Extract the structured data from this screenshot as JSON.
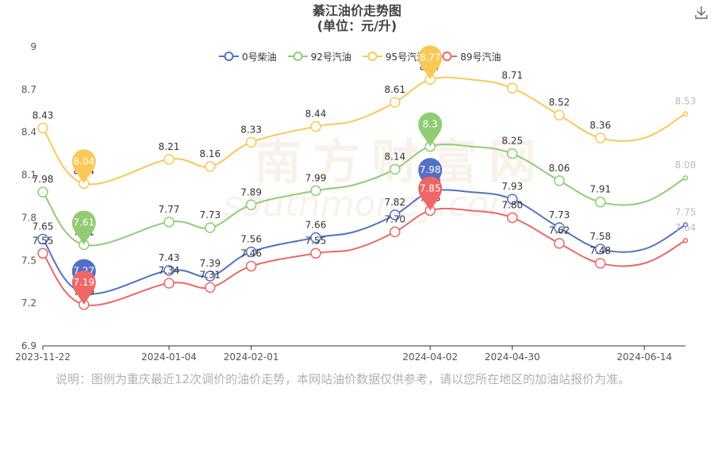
{
  "title": "綦江油价走势图",
  "subtitle": "(单位：元/升)",
  "footnote": "说明：图例为重庆最近12次调价的油价走势，本网站油价数据仅供参考，请以您所在地区的加油站报价为准。",
  "watermark": {
    "cn": "南方财富网",
    "en": "southmoney.com"
  },
  "icons": {
    "download": "download-icon"
  },
  "chart_data": {
    "type": "line",
    "title": "綦江油价走势图",
    "subtitle": "(单位：元/升)",
    "x": [
      "2023-11-22",
      "2023-12-06",
      "2024-01-04",
      "2024-01-18",
      "2024-02-01",
      "2024-02-23",
      "2024-03-07",
      "2024-03-21",
      "2024-04-02",
      "2024-04-16",
      "2024-04-30",
      "2024-05-16",
      "2024-05-30",
      "2024-06-14",
      "2024-06-28"
    ],
    "xticks": [
      "2023-11-22",
      "2024-01-04",
      "2024-02-01",
      "2024-04-02",
      "2024-04-30",
      "2024-06-14"
    ],
    "ylim": [
      6.9,
      9
    ],
    "yticks": [
      "6.9",
      "7.2",
      "7.5",
      "7.8",
      "8.1",
      "8.4",
      "8.7",
      "9"
    ],
    "grid": false,
    "legend_position": "top",
    "series": [
      {
        "name": "0号柴油",
        "color": "#5470c6",
        "values": [
          7.65,
          7.27,
          7.43,
          7.39,
          7.56,
          7.66,
          7.7,
          7.82,
          7.98,
          7.98,
          7.93,
          7.73,
          7.58,
          7.58,
          7.75
        ],
        "labels": [
          "7.65",
          "7.27",
          "7.43",
          "7.39",
          "7.56",
          "7.66",
          "",
          "7.82",
          "7.98",
          "",
          "7.93",
          "7.73",
          "7.58",
          "",
          "7.75"
        ],
        "marker": {
          "index": 8,
          "label": "7.98"
        }
      },
      {
        "name": "92号汽油",
        "color": "#91cc75",
        "values": [
          7.98,
          7.61,
          7.77,
          7.73,
          7.89,
          7.99,
          8.03,
          8.14,
          8.3,
          8.3,
          8.25,
          8.06,
          7.91,
          7.91,
          8.08
        ],
        "labels": [
          "7.98",
          "7.61",
          "7.77",
          "7.73",
          "7.89",
          "7.99",
          "",
          "8.14",
          "8.3",
          "",
          "8.25",
          "8.06",
          "7.91",
          "",
          "8.08"
        ],
        "marker": {
          "index": 1,
          "label": "7.61"
        }
      },
      {
        "name": "95号汽油",
        "color": "#fac858",
        "values": [
          8.43,
          8.04,
          8.21,
          8.16,
          8.33,
          8.44,
          8.48,
          8.61,
          8.77,
          8.77,
          8.71,
          8.52,
          8.36,
          8.36,
          8.53
        ],
        "labels": [
          "8.43",
          "8.04",
          "8.21",
          "8.16",
          "8.33",
          "8.44",
          "",
          "8.61",
          "8.77",
          "",
          "8.71",
          "8.52",
          "8.36",
          "",
          "8.53"
        ],
        "marker": {
          "index": 8,
          "label": "8.77"
        }
      },
      {
        "name": "89号汽油",
        "color": "#ee6666",
        "values": [
          7.55,
          7.19,
          7.34,
          7.31,
          7.46,
          7.55,
          7.58,
          7.7,
          7.85,
          7.85,
          7.8,
          7.62,
          7.48,
          7.48,
          7.64
        ],
        "labels": [
          "7.55",
          "7.19",
          "7.34",
          "7.31",
          "7.46",
          "7.55",
          "",
          "7.70",
          "7.85",
          "",
          "7.80",
          "7.62",
          "7.48",
          "",
          "7.64"
        ],
        "marker": {
          "index": 8,
          "label": "7.85"
        }
      }
    ],
    "extra_markers": [
      {
        "series": 0,
        "index": 1,
        "label": "7.27"
      },
      {
        "series": 1,
        "index": 8,
        "label": "8.3"
      },
      {
        "series": 2,
        "index": 1,
        "label": "8.04"
      },
      {
        "series": 3,
        "index": 1,
        "label": "7.19"
      }
    ]
  }
}
